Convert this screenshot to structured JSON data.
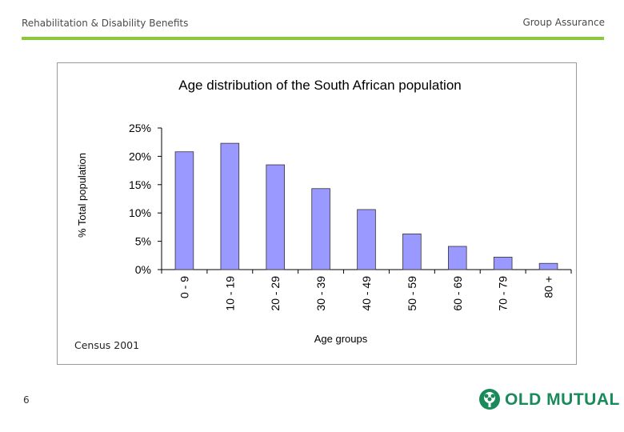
{
  "header": {
    "left_title": "Rehabilitation & Disability Benefits",
    "right_title": "Group Assurance"
  },
  "footer": {
    "page_number": "6",
    "logo_text": "OLD MUTUAL"
  },
  "source_note": "Census 2001",
  "colors": {
    "accent_rule": "#8dc63f",
    "bar_fill": "#9999ff",
    "bar_stroke": "#333333",
    "logo_green": "#1a8a5a"
  },
  "chart_data": {
    "type": "bar",
    "title": "Age distribution of the South African population",
    "xlabel": "Age groups",
    "ylabel": "% Total population",
    "categories": [
      "0 - 9",
      "10 - 19",
      "20 - 29",
      "30 - 39",
      "40 - 49",
      "50 - 59",
      "60 - 69",
      "70 - 79",
      "80 +"
    ],
    "values": [
      20.8,
      22.3,
      18.5,
      14.3,
      10.6,
      6.3,
      4.1,
      2.2,
      1.1
    ],
    "yticks": [
      "0%",
      "5%",
      "10%",
      "15%",
      "20%",
      "25%"
    ],
    "ylim": [
      0,
      25
    ],
    "grid": false,
    "legend": "none"
  }
}
